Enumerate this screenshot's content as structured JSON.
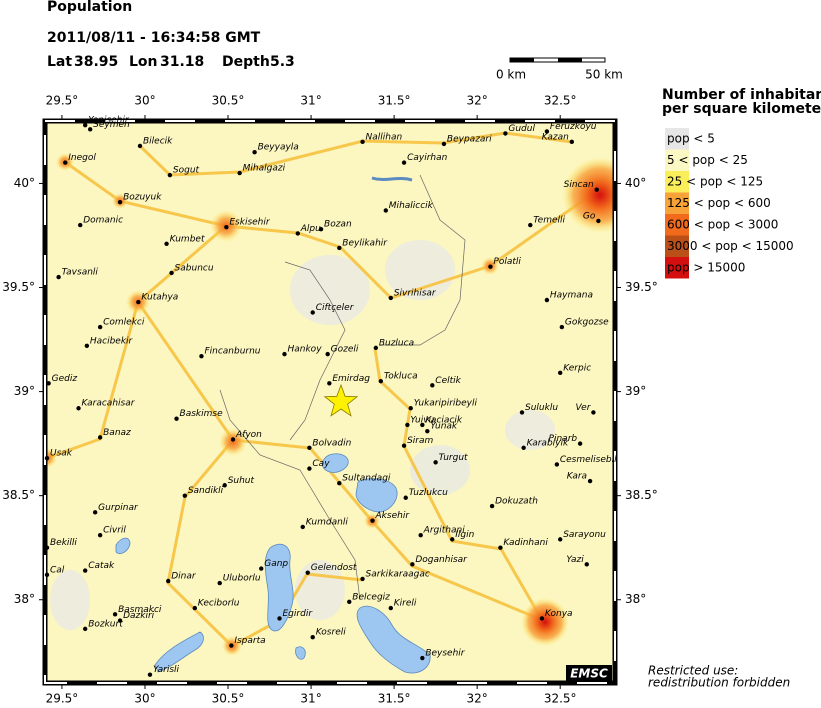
{
  "header": {
    "title": "Population",
    "datetime": "2011/08/11 - 16:34:58 GMT",
    "lat_label": "Lat",
    "lat": 38.95,
    "lon_label": "Lon",
    "lon": 31.18,
    "depth_label": "Depth",
    "depth": 5.3
  },
  "scale_bar": {
    "start": "0 km",
    "end": "50 km"
  },
  "map": {
    "lon_range": [
      29.398,
      32.83
    ],
    "lat_range": [
      37.6,
      40.3
    ],
    "lon_ticks": [
      {
        "value": 29.5,
        "label": "29.5°"
      },
      {
        "value": 30,
        "label": "30°"
      },
      {
        "value": 30.5,
        "label": "30.5°"
      },
      {
        "value": 31,
        "label": "31°"
      },
      {
        "value": 31.5,
        "label": "31.5°"
      },
      {
        "value": 32,
        "label": "32°"
      },
      {
        "value": 32.5,
        "label": "32.5°"
      }
    ],
    "lat_ticks": [
      {
        "value": 38,
        "label": "38°"
      },
      {
        "value": 38.5,
        "label": "38.5°"
      },
      {
        "value": 39,
        "label": "39°"
      },
      {
        "value": 39.5,
        "label": "39.5°"
      },
      {
        "value": 40,
        "label": "40°"
      }
    ],
    "logo": "EMSC"
  },
  "towns": [
    {
      "name": "Yenisehir",
      "lon": 29.64,
      "lat": 40.28
    },
    {
      "name": "Seymen",
      "lon": 29.67,
      "lat": 40.26
    },
    {
      "name": "Inegol",
      "lon": 29.52,
      "lat": 40.1
    },
    {
      "name": "Bilecik",
      "lon": 29.97,
      "lat": 40.18
    },
    {
      "name": "Sogut",
      "lon": 30.15,
      "lat": 40.04
    },
    {
      "name": "Beyyayla",
      "lon": 30.66,
      "lat": 40.15
    },
    {
      "name": "Mihalgazi",
      "lon": 30.57,
      "lat": 40.05
    },
    {
      "name": "Nallihan",
      "lon": 31.31,
      "lat": 40.2
    },
    {
      "name": "Cayirhan",
      "lon": 31.56,
      "lat": 40.1
    },
    {
      "name": "Beypazari",
      "lon": 31.8,
      "lat": 40.19
    },
    {
      "name": "Gudul",
      "lon": 32.17,
      "lat": 40.24
    },
    {
      "name": "Feruzkoyu",
      "lon": 32.42,
      "lat": 40.25
    },
    {
      "name": "Kazan",
      "lon": 32.57,
      "lat": 40.2
    },
    {
      "name": "Sincan",
      "lon": 32.72,
      "lat": 39.97
    },
    {
      "name": "Go",
      "lon": 32.73,
      "lat": 39.82
    },
    {
      "name": "Bozuyuk",
      "lon": 29.85,
      "lat": 39.91
    },
    {
      "name": "Domanic",
      "lon": 29.61,
      "lat": 39.8
    },
    {
      "name": "Eskisehir",
      "lon": 30.49,
      "lat": 39.79
    },
    {
      "name": "Kumbet",
      "lon": 30.13,
      "lat": 39.71
    },
    {
      "name": "Alpu",
      "lon": 30.92,
      "lat": 39.76
    },
    {
      "name": "Bozan",
      "lon": 31.06,
      "lat": 39.78
    },
    {
      "name": "Mihaliccik",
      "lon": 31.45,
      "lat": 39.87
    },
    {
      "name": "Beylikahir",
      "lon": 31.17,
      "lat": 39.69
    },
    {
      "name": "Temelli",
      "lon": 32.32,
      "lat": 39.8
    },
    {
      "name": "Sabuncu",
      "lon": 30.16,
      "lat": 39.57
    },
    {
      "name": "Tavsanli",
      "lon": 29.48,
      "lat": 39.55
    },
    {
      "name": "Polatli",
      "lon": 32.08,
      "lat": 39.6
    },
    {
      "name": "Kutahya",
      "lon": 29.96,
      "lat": 39.43
    },
    {
      "name": "Ciftçeler",
      "lon": 31.01,
      "lat": 39.38
    },
    {
      "name": "Sivrihisar",
      "lon": 31.48,
      "lat": 39.45
    },
    {
      "name": "Haymana",
      "lon": 32.42,
      "lat": 39.44
    },
    {
      "name": "Comlekci",
      "lon": 29.73,
      "lat": 39.31
    },
    {
      "name": "Gokgozse",
      "lon": 32.51,
      "lat": 39.31
    },
    {
      "name": "Hacibekir",
      "lon": 29.65,
      "lat": 39.22
    },
    {
      "name": "Fincanburnu",
      "lon": 30.34,
      "lat": 39.17
    },
    {
      "name": "Hankoy",
      "lon": 30.84,
      "lat": 39.18
    },
    {
      "name": "Gozeli",
      "lon": 31.1,
      "lat": 39.18
    },
    {
      "name": "Buzluca",
      "lon": 31.39,
      "lat": 39.21
    },
    {
      "name": "Gediz",
      "lon": 29.42,
      "lat": 39.04
    },
    {
      "name": "Tokluca",
      "lon": 31.42,
      "lat": 39.05
    },
    {
      "name": "Emirdag",
      "lon": 31.11,
      "lat": 39.04
    },
    {
      "name": "Celtik",
      "lon": 31.73,
      "lat": 39.03
    },
    {
      "name": "Kerpic",
      "lon": 32.5,
      "lat": 39.09
    },
    {
      "name": "Karacahisar",
      "lon": 29.6,
      "lat": 38.92
    },
    {
      "name": "Baskimse",
      "lon": 30.19,
      "lat": 38.87
    },
    {
      "name": "Yukaripiribeyli",
      "lon": 31.6,
      "lat": 38.92
    },
    {
      "name": "Suluklu",
      "lon": 32.27,
      "lat": 38.9
    },
    {
      "name": "Ver",
      "lon": 32.7,
      "lat": 38.9
    },
    {
      "name": "Yuivu",
      "lon": 31.58,
      "lat": 38.84
    },
    {
      "name": "Kaciacik",
      "lon": 31.67,
      "lat": 38.84
    },
    {
      "name": "Yunak",
      "lon": 31.7,
      "lat": 38.81
    },
    {
      "name": "Banaz",
      "lon": 29.73,
      "lat": 38.78
    },
    {
      "name": "Afyon",
      "lon": 30.53,
      "lat": 38.77
    },
    {
      "name": "Bolvadin",
      "lon": 30.99,
      "lat": 38.73
    },
    {
      "name": "Siram",
      "lon": 31.56,
      "lat": 38.74
    },
    {
      "name": "Karabiyik",
      "lon": 32.28,
      "lat": 38.73
    },
    {
      "name": "Pinarb",
      "lon": 32.62,
      "lat": 38.75
    },
    {
      "name": "Usak",
      "lon": 29.41,
      "lat": 38.68
    },
    {
      "name": "Cay",
      "lon": 30.99,
      "lat": 38.63
    },
    {
      "name": "Cesmelisebil",
      "lon": 32.48,
      "lat": 38.65
    },
    {
      "name": "Turgut",
      "lon": 31.75,
      "lat": 38.66
    },
    {
      "name": "Sultandagi",
      "lon": 31.17,
      "lat": 38.56
    },
    {
      "name": "Suhut",
      "lon": 30.48,
      "lat": 38.55
    },
    {
      "name": "Kara",
      "lon": 32.68,
      "lat": 38.57
    },
    {
      "name": "Tuzlukcu",
      "lon": 31.57,
      "lat": 38.49
    },
    {
      "name": "Sandikli",
      "lon": 30.24,
      "lat": 38.5
    },
    {
      "name": "Dokuzath",
      "lon": 32.09,
      "lat": 38.45
    },
    {
      "name": "Gurpinar",
      "lon": 29.7,
      "lat": 38.42
    },
    {
      "name": "Aksehir",
      "lon": 31.37,
      "lat": 38.38
    },
    {
      "name": "Kumdanli",
      "lon": 30.95,
      "lat": 38.35
    },
    {
      "name": "Civril",
      "lon": 29.73,
      "lat": 38.31
    },
    {
      "name": "Argithani",
      "lon": 31.66,
      "lat": 38.31
    },
    {
      "name": "Ilgin",
      "lon": 31.85,
      "lat": 38.29
    },
    {
      "name": "Sarayonu",
      "lon": 32.5,
      "lat": 38.29
    },
    {
      "name": "Bekilli",
      "lon": 29.41,
      "lat": 38.25
    },
    {
      "name": "Kadinhani",
      "lon": 32.14,
      "lat": 38.25
    },
    {
      "name": "Catak",
      "lon": 29.64,
      "lat": 38.14
    },
    {
      "name": "Gelendost",
      "lon": 30.98,
      "lat": 38.13
    },
    {
      "name": "Ganp",
      "lon": 30.7,
      "lat": 38.15
    },
    {
      "name": "Doganhisar",
      "lon": 31.61,
      "lat": 38.17
    },
    {
      "name": "Yazi",
      "lon": 32.66,
      "lat": 38.17
    },
    {
      "name": "Cal",
      "lon": 29.41,
      "lat": 38.12
    },
    {
      "name": "Dinar",
      "lon": 30.14,
      "lat": 38.09
    },
    {
      "name": "Uluborlu",
      "lon": 30.45,
      "lat": 38.08
    },
    {
      "name": "Sarkikaraagac",
      "lon": 31.31,
      "lat": 38.1
    },
    {
      "name": "Keciborlu",
      "lon": 30.3,
      "lat": 37.96
    },
    {
      "name": "Basmakci",
      "lon": 29.82,
      "lat": 37.93
    },
    {
      "name": "Dazkiri",
      "lon": 29.85,
      "lat": 37.9
    },
    {
      "name": "Belcegiz",
      "lon": 31.23,
      "lat": 37.99
    },
    {
      "name": "Kireli",
      "lon": 31.48,
      "lat": 37.96
    },
    {
      "name": "Egirdir",
      "lon": 30.81,
      "lat": 37.91
    },
    {
      "name": "Konya",
      "lon": 32.39,
      "lat": 37.91
    },
    {
      "name": "Bozkurt",
      "lon": 29.64,
      "lat": 37.86
    },
    {
      "name": "Isparta",
      "lon": 30.52,
      "lat": 37.78
    },
    {
      "name": "Kosreli",
      "lon": 31.01,
      "lat": 37.82
    },
    {
      "name": "Beysehir",
      "lon": 31.67,
      "lat": 37.72
    },
    {
      "name": "Yarisli",
      "lon": 30.03,
      "lat": 37.64
    }
  ],
  "legend": {
    "title_line1": "Number of inhabitants",
    "title_line2": "per square kilometer",
    "items": [
      {
        "label": "pop < 5",
        "color": "#e6e6e6"
      },
      {
        "label": "5 < pop < 25",
        "color": "#fcf8c4"
      },
      {
        "label": "25 < pop < 125",
        "color": "#faef5a"
      },
      {
        "label": "125 < pop < 600",
        "color": "#f8a23a"
      },
      {
        "label": "600 < pop < 3000",
        "color": "#f26a1b"
      },
      {
        "label": "3000 < pop < 15000",
        "color": "#ba4f18"
      },
      {
        "label": "pop > 15000",
        "color": "#d40f0f"
      }
    ]
  },
  "footer": {
    "line1": "Restricted use:",
    "line2": "redistribution forbidden"
  }
}
